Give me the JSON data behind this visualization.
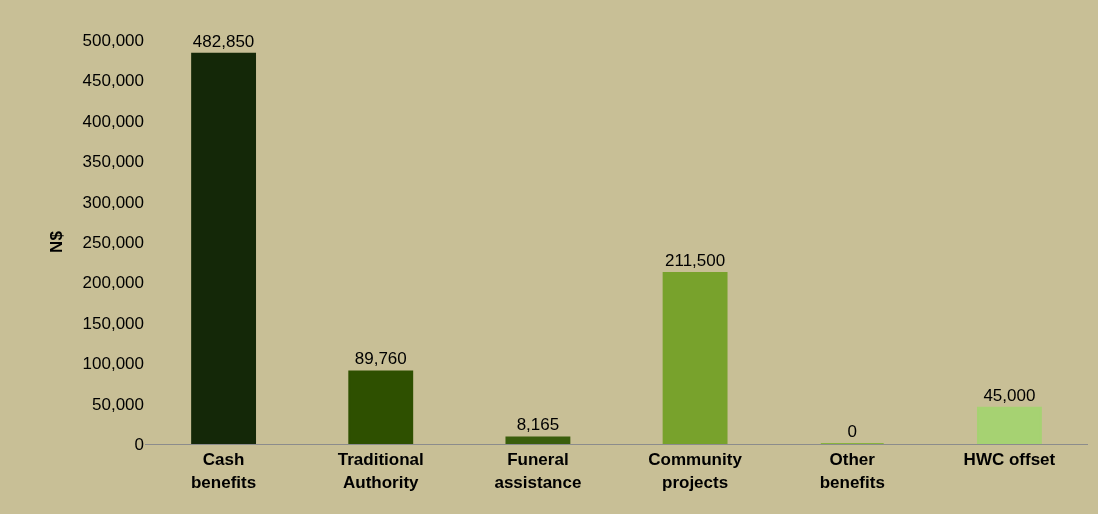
{
  "chart_data": {
    "type": "bar",
    "ylabel": "N$",
    "categories": [
      "Cash\nbenefits",
      "Traditional\nAuthority",
      "Funeral\nassistance",
      "Community\nprojects",
      "Other\nbenefits",
      "HWC offset"
    ],
    "values": [
      482850,
      89760,
      8165,
      211500,
      0,
      45000
    ],
    "colors": [
      "#142808",
      "#2e5000",
      "#3a5e0c",
      "#78a22c",
      "#88b43c",
      "#a6d272"
    ],
    "ylim": [
      0,
      500000
    ],
    "yticks": [
      {
        "value": 0,
        "label": "0"
      },
      {
        "value": 50000,
        "label": "50,000"
      },
      {
        "value": 100000,
        "label": "100,000"
      },
      {
        "value": 150000,
        "label": "150,000"
      },
      {
        "value": 200000,
        "label": "200,000"
      },
      {
        "value": 250000,
        "label": "250,000"
      },
      {
        "value": 300000,
        "label": "300,000"
      },
      {
        "value": 350000,
        "label": "350,000"
      },
      {
        "value": 400000,
        "label": "400,000"
      },
      {
        "value": 450000,
        "label": "450,000"
      },
      {
        "value": 500000,
        "label": "500,000"
      }
    ],
    "value_labels": [
      "482,850",
      "89,760",
      "8,165",
      "211,500",
      "0",
      "45,000"
    ],
    "grid": false
  }
}
